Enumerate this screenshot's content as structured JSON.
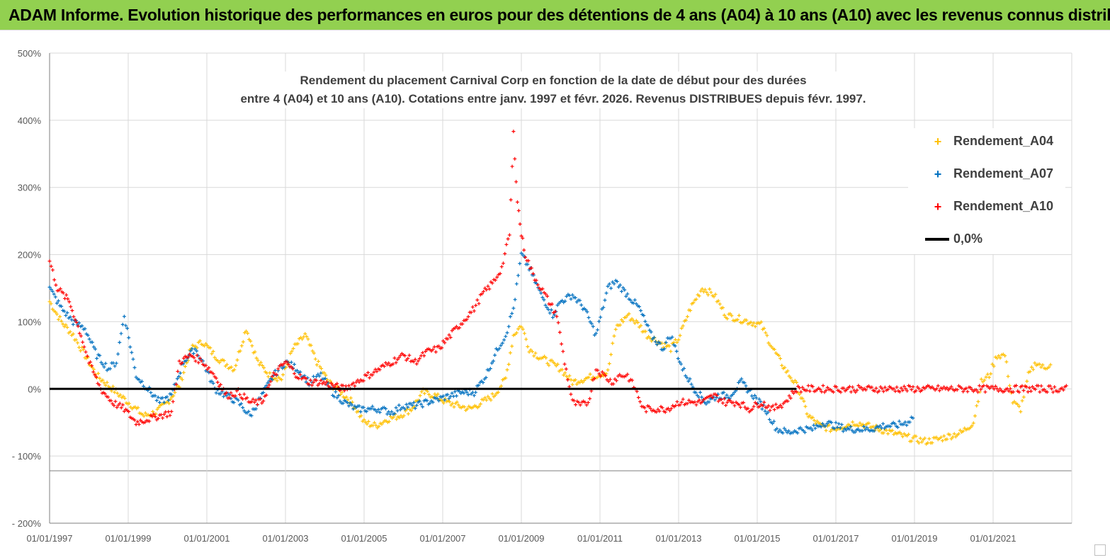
{
  "banner": {
    "title": "ADAM Informe. Evolution historique des performances en euros pour des détentions de 4 ans (A04) à 10 ans (A10) avec les revenus connus distribués"
  },
  "colors": {
    "banner": "#92d050",
    "A04": "#ffc000",
    "A07": "#0070c0",
    "A10": "#ff0000",
    "zero": "#000000",
    "grid": "#d9d9d9"
  },
  "chart_data": {
    "type": "scatter",
    "title_line1": "Rendement du placement Carnival Corp en fonction de la date de début pour des durées",
    "title_line2": "entre 4 (A04) et 10 ans (A10). Cotations entre janv. 1997 et févr. 2026. Revenus DISTRIBUES depuis févr. 1997.",
    "ylim": [
      -200,
      500
    ],
    "y_ticks": [
      500,
      400,
      300,
      200,
      100,
      0,
      -100,
      -200
    ],
    "y_tick_labels": [
      "500%",
      "400%",
      "300%",
      "200%",
      "100%",
      "0%",
      "- 100%",
      "- 200%"
    ],
    "x_start_year": 1997,
    "x_end_year": 2023,
    "x_tick_years": [
      1997,
      1999,
      2001,
      2003,
      2005,
      2007,
      2009,
      2011,
      2013,
      2015,
      2017,
      2019,
      2021
    ],
    "x_tick_labels": [
      "01/01/1997",
      "01/01/1999",
      "01/01/2001",
      "01/01/2003",
      "01/01/2005",
      "01/01/2007",
      "01/01/2009",
      "01/01/2011",
      "01/01/2013",
      "01/01/2015",
      "01/01/2017",
      "01/01/2019",
      "01/01/2021"
    ],
    "legend": [
      {
        "name": "Rendement_A04",
        "key": "A04"
      },
      {
        "name": "Rendement_A07",
        "key": "A07"
      },
      {
        "name": "Rendement_A10",
        "key": "A10"
      },
      {
        "name": "0,0%",
        "key": "zero"
      }
    ],
    "series": [
      {
        "name": "Rendement_A04",
        "key": "A04",
        "x": [
          1997.0,
          1997.3,
          1997.6,
          1997.9,
          1998.2,
          1998.5,
          1998.8,
          1999.1,
          1999.4,
          1999.7,
          2000.0,
          2000.3,
          2000.6,
          2000.9,
          2001.2,
          2001.4,
          2001.7,
          2002.0,
          2002.3,
          2002.6,
          2002.9,
          2003.2,
          2003.5,
          2003.8,
          2004.1,
          2004.4,
          2004.7,
          2005.0,
          2005.3,
          2005.6,
          2005.9,
          2006.2,
          2006.5,
          2006.8,
          2007.1,
          2007.4,
          2007.7,
          2008.0,
          2008.3,
          2008.6,
          2008.8,
          2009.0,
          2009.2,
          2009.4,
          2009.7,
          2010.0,
          2010.3,
          2010.6,
          2010.9,
          2011.2,
          2011.4,
          2011.7,
          2012.0,
          2012.2,
          2012.5,
          2012.8,
          2013.0,
          2013.3,
          2013.6,
          2013.9,
          2014.2,
          2014.5,
          2014.8,
          2015.1,
          2015.4,
          2015.7,
          2016.0,
          2016.3,
          2016.6,
          2016.9,
          2017.2,
          2017.5,
          2017.8,
          2018.1,
          2018.4,
          2018.7,
          2019.0,
          2019.3,
          2019.6,
          2019.9,
          2020.2,
          2020.5,
          2020.7,
          2020.9,
          2021.1,
          2021.3,
          2021.5,
          2021.7,
          2021.9,
          2022.1,
          2022.3,
          2022.5
        ],
        "y": [
          130,
          100,
          80,
          50,
          20,
          5,
          -10,
          -25,
          -40,
          -35,
          -20,
          5,
          60,
          70,
          50,
          40,
          30,
          90,
          40,
          20,
          15,
          60,
          80,
          40,
          10,
          -5,
          -20,
          -50,
          -55,
          -45,
          -40,
          -30,
          -5,
          -10,
          -20,
          -25,
          -30,
          -20,
          -10,
          15,
          80,
          95,
          60,
          50,
          40,
          30,
          10,
          15,
          20,
          25,
          90,
          110,
          95,
          80,
          70,
          60,
          75,
          120,
          150,
          140,
          110,
          105,
          100,
          95,
          60,
          30,
          5,
          -40,
          -55,
          -60,
          -55,
          -50,
          -55,
          -60,
          -65,
          -70,
          -75,
          -78,
          -75,
          -70,
          -65,
          -50,
          10,
          20,
          50,
          50,
          -20,
          -30,
          20,
          40,
          30,
          40
        ]
      },
      {
        "name": "Rendement_A07",
        "key": "A07",
        "x": [
          1997.0,
          1997.3,
          1997.6,
          1997.9,
          1998.2,
          1998.5,
          1998.7,
          1998.9,
          1999.2,
          1999.5,
          1999.8,
          2000.1,
          2000.4,
          2000.7,
          2000.9,
          2001.2,
          2001.5,
          2001.8,
          2002.1,
          2002.4,
          2002.7,
          2003.0,
          2003.3,
          2003.6,
          2003.9,
          2004.2,
          2004.5,
          2004.8,
          2005.1,
          2005.4,
          2005.7,
          2006.0,
          2006.3,
          2006.6,
          2006.9,
          2007.2,
          2007.5,
          2007.8,
          2008.1,
          2008.4,
          2008.6,
          2008.8,
          2009.0,
          2009.2,
          2009.5,
          2009.8,
          2010.0,
          2010.3,
          2010.6,
          2010.9,
          2011.2,
          2011.4,
          2011.7,
          2012.0,
          2012.3,
          2012.6,
          2012.8,
          2013.1,
          2013.4,
          2013.7,
          2014.0,
          2014.3,
          2014.6,
          2014.9,
          2015.2,
          2015.5,
          2015.8,
          2016.1,
          2016.4,
          2016.7,
          2017.0,
          2017.3,
          2017.6,
          2017.9,
          2018.2,
          2018.5,
          2018.8,
          2019.0
        ],
        "y": [
          150,
          120,
          100,
          90,
          50,
          30,
          40,
          110,
          20,
          0,
          -20,
          -10,
          40,
          60,
          40,
          0,
          -10,
          -20,
          -40,
          -10,
          20,
          40,
          30,
          10,
          20,
          -5,
          -20,
          -30,
          -30,
          -30,
          -35,
          -25,
          -25,
          -20,
          -15,
          -10,
          -5,
          -5,
          20,
          60,
          80,
          120,
          200,
          180,
          140,
          110,
          130,
          140,
          120,
          80,
          150,
          160,
          140,
          120,
          80,
          60,
          80,
          30,
          0,
          -20,
          -10,
          -10,
          10,
          -10,
          -30,
          -60,
          -65,
          -60,
          -60,
          -50,
          -55,
          -60,
          -60,
          -60,
          -55,
          -55,
          -50,
          -40
        ]
      },
      {
        "name": "Rendement_A10",
        "key": "A10",
        "x": [
          1997.0,
          1997.2,
          1997.5,
          1997.8,
          1998.0,
          1998.3,
          1998.6,
          1998.9,
          1999.2,
          1999.5,
          1999.8,
          2000.1,
          2000.3,
          2000.6,
          2000.9,
          2001.2,
          2001.5,
          2001.8,
          2002.1,
          2002.4,
          2002.7,
          2003.0,
          2003.3,
          2003.6,
          2003.9,
          2004.2,
          2004.5,
          2004.8,
          2005.1,
          2005.4,
          2005.7,
          2006.0,
          2006.3,
          2006.6,
          2006.9,
          2007.2,
          2007.5,
          2007.8,
          2008.0,
          2008.3,
          2008.5,
          2008.7,
          2008.8,
          2008.9,
          2009.0,
          2009.1,
          2009.3,
          2009.5,
          2009.7,
          2009.9,
          2010.1,
          2010.3,
          2010.5,
          2010.7,
          2010.9,
          2011.1,
          2011.3,
          2011.5,
          2011.7,
          2011.9,
          2012.1,
          2012.4,
          2012.7,
          2013.0,
          2013.3,
          2013.6,
          2013.9,
          2014.2,
          2014.5,
          2014.8,
          2015.1,
          2015.4,
          2015.7,
          2016.0,
          2016.3,
          2016.6,
          2016.9,
          2017.2,
          2017.5,
          2017.8,
          2018.1,
          2018.4,
          2018.7,
          2019.0,
          2019.3,
          2019.6,
          2019.9,
          2020.2,
          2020.5,
          2020.8,
          2021.1,
          2021.4,
          2021.7,
          2022.0,
          2022.3,
          2022.6,
          2022.9
        ],
        "y": [
          190,
          150,
          130,
          80,
          40,
          0,
          -20,
          -30,
          -50,
          -45,
          -40,
          -35,
          40,
          50,
          40,
          20,
          -10,
          -5,
          -20,
          -20,
          20,
          40,
          20,
          10,
          10,
          5,
          0,
          10,
          20,
          30,
          40,
          50,
          40,
          55,
          60,
          80,
          100,
          120,
          140,
          160,
          180,
          230,
          380,
          280,
          230,
          200,
          170,
          150,
          130,
          110,
          40,
          -20,
          -25,
          -20,
          30,
          20,
          10,
          20,
          20,
          0,
          -30,
          -30,
          -30,
          -20,
          -20,
          -20,
          -10,
          -20,
          -20,
          -30,
          -20,
          -30,
          -20,
          0,
          0,
          0,
          0,
          0,
          0,
          0,
          0,
          0,
          0,
          0,
          0,
          0,
          0,
          0,
          0,
          0,
          0,
          0,
          0,
          0,
          0,
          0,
          0
        ]
      },
      {
        "name": "0,0%",
        "key": "zero",
        "x": [
          1997.0,
          2016.0
        ],
        "y": [
          0,
          0
        ]
      }
    ]
  }
}
